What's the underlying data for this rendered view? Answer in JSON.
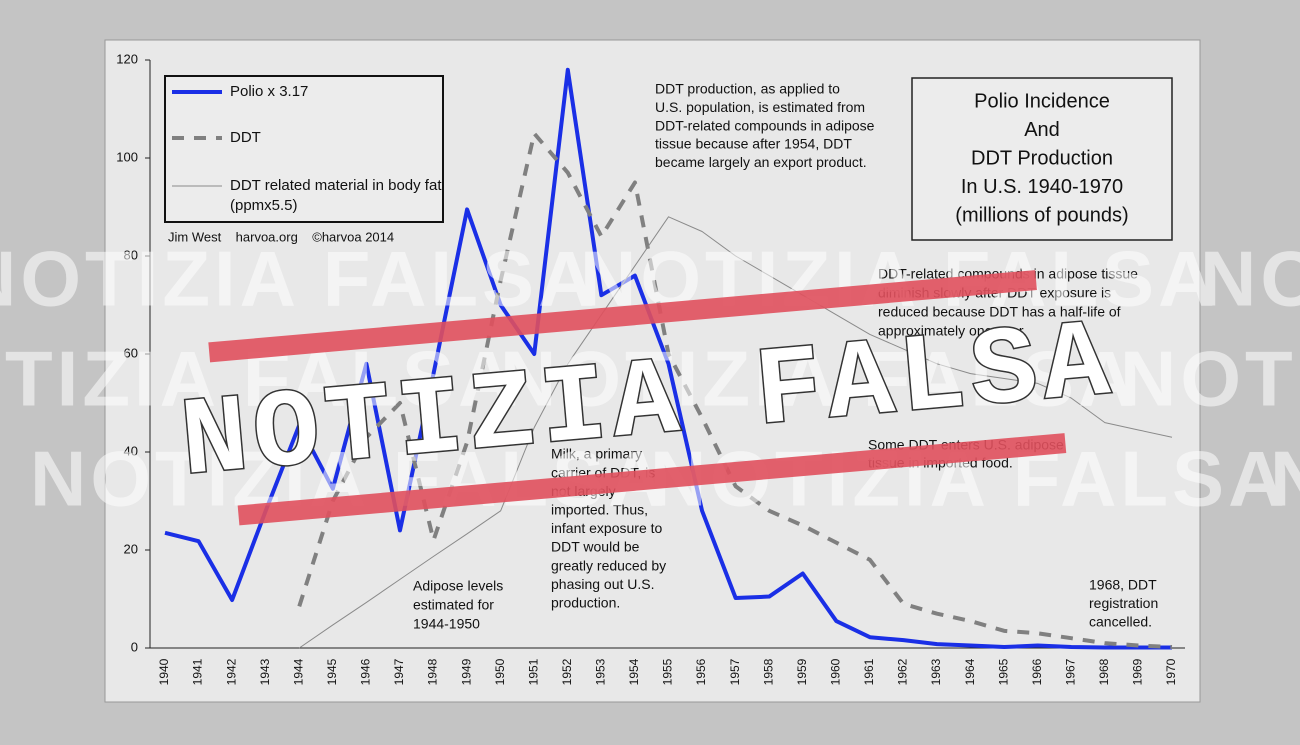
{
  "chart_data": {
    "type": "line",
    "title": [
      "Polio Incidence",
      "And",
      "DDT Production",
      "In U.S. 1940-1970",
      "(millions of pounds)"
    ],
    "credit": "Jim West    harvoa.org    ©harvoa 2014",
    "categories": [
      "1940",
      "1941",
      "1942",
      "1943",
      "1944",
      "1945",
      "1946",
      "1947",
      "1948",
      "1949",
      "1950",
      "1951",
      "1952",
      "1953",
      "1954",
      "1955",
      "1956",
      "1957",
      "1958",
      "1959",
      "1960",
      "1961",
      "1962",
      "1963",
      "1964",
      "1965",
      "1966",
      "1967",
      "1968",
      "1969",
      "1970"
    ],
    "ylim": [
      0,
      120
    ],
    "yticks": [
      0,
      20,
      40,
      60,
      80,
      100,
      120
    ],
    "series": [
      {
        "name": "Polio x 3.17",
        "color": "#1a2fe6",
        "style": "solid",
        "width": 4,
        "values": [
          23.5,
          21.8,
          9.8,
          28,
          45.5,
          32.5,
          58,
          24,
          56,
          89.5,
          70,
          60,
          118,
          72,
          76,
          58,
          28,
          10.2,
          10.5,
          15.2,
          5.5,
          2.2,
          1.6,
          0.8,
          0.5,
          0.2,
          0.5,
          0.2,
          0.1,
          0.1,
          0.1
        ]
      },
      {
        "name": "DDT",
        "color": "#808080",
        "style": "dashed",
        "width": 4,
        "values": [
          null,
          null,
          null,
          null,
          8.5,
          30,
          43,
          50,
          22,
          42,
          75,
          105,
          97,
          84,
          95,
          60,
          47,
          33,
          28,
          25,
          21.5,
          18,
          9,
          7,
          5.5,
          3.5,
          3,
          2,
          1,
          0.5,
          0.2
        ]
      },
      {
        "name": "DDT related material in body fat (ppmx5.5)",
        "color": "#8a8a8a",
        "style": "solid",
        "width": 1,
        "values": [
          null,
          null,
          null,
          null,
          0,
          4.7,
          9.3,
          14,
          18.7,
          23.3,
          28,
          45,
          58,
          68,
          78,
          88,
          85,
          80,
          76,
          72,
          68,
          64,
          61,
          58,
          56,
          55,
          54,
          51,
          46,
          44.5,
          43
        ]
      }
    ],
    "annotations": [
      [
        "DDT production, as applied to",
        "U.S. population, is estimated from",
        "DDT-related compounds in adipose",
        "tissue because after 1954, DDT",
        "became largely an export product."
      ],
      [
        "DDT-related compounds in adipose tissue",
        "diminish slowly after DDT exposure is",
        "reduced because DDT has a half-life of",
        "approximately one year."
      ],
      [
        "Milk, a primary",
        "carrier of DDT, is",
        "not largely",
        "imported. Thus,",
        "infant exposure to",
        "DDT would be",
        "greatly reduced by",
        "phasing out U.S.",
        "production."
      ],
      [
        "Adipose levels",
        "estimated for",
        "1944-1950"
      ],
      [
        "Some DDT enters U.S. adipose",
        "tissue in imported food."
      ],
      [
        "1968, DDT",
        "registration",
        "cancelled."
      ]
    ]
  },
  "overlay": {
    "stamp": "NOTIZIA FALSA",
    "watermark": "NOTIZIA FALSA"
  }
}
